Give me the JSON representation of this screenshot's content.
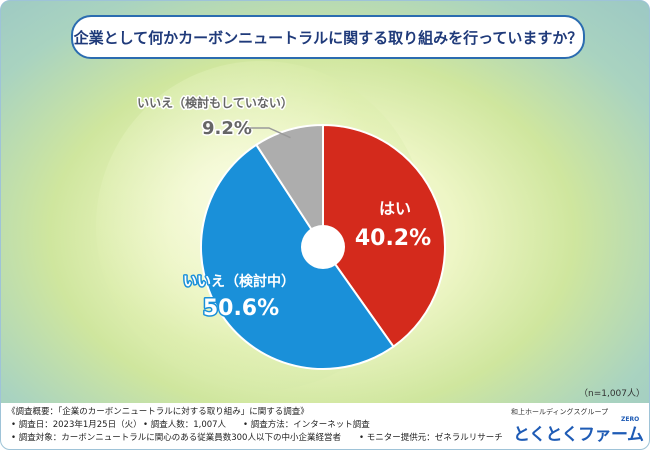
{
  "title": "企業として何かカーボンニュートラルに関する取り組みを行っていますか？",
  "chart_data": {
    "type": "pie",
    "slices": [
      {
        "label": "はい",
        "value": 40.2,
        "display": "40.2%",
        "color": "#d42a1c"
      },
      {
        "label": "いいえ（検討中）",
        "value": 50.6,
        "display": "50.6%",
        "color": "#1a90d9"
      },
      {
        "label": "いいえ（検討もしていない）",
        "value": 9.2,
        "display": "9.2%",
        "color": "#adadad"
      }
    ]
  },
  "sample_size": "（n=1,007人）",
  "footer": {
    "line1": "《調査概要：「企業のカーボンニュートラルに対する取り組み」に関する調査》",
    "line2a": "• 調査日：2023年1月25日（火）",
    "line2b": "• 調査人数：1,007人",
    "line2c": "• 調査方法：インターネット調査",
    "line3a": "• 調査対象：カーボンニュートラルに関心のある従業員数300人以下の中小企業経営者",
    "line3b": "• モニター提供元：ゼネラルリサーチ"
  },
  "logo": {
    "company": "和上ホールディングスグループ",
    "brand": "とくとくファーム",
    "suffix": "ZERO"
  }
}
